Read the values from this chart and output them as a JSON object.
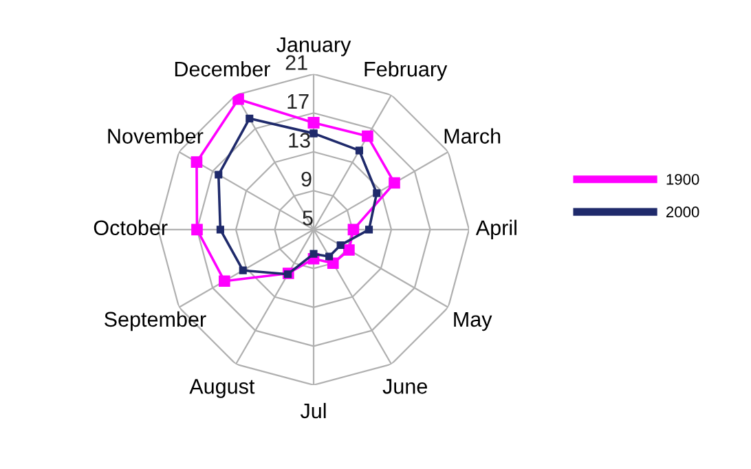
{
  "chart_data": {
    "type": "radar",
    "categories": [
      "January",
      "February",
      "March",
      "April",
      "May",
      "June",
      "Jul",
      "August",
      "September",
      "October",
      "November",
      "December"
    ],
    "series": [
      {
        "name": "1900",
        "color": "#ff00ff",
        "values": [
          16.0,
          16.1,
          14.6,
          9.1,
          9.2,
          9.0,
          8.0,
          10.2,
          15.6,
          17.0,
          18.9,
          20.5
        ]
      },
      {
        "name": "2000",
        "color": "#1f2a6b",
        "values": [
          14.9,
          14.4,
          12.5,
          10.7,
          8.2,
          8.2,
          7.5,
          10.3,
          13.4,
          14.6,
          16.3,
          18.2
        ]
      }
    ],
    "ylim": [
      5,
      21
    ],
    "yticks": [
      5,
      9,
      13,
      17,
      21
    ],
    "grid": true,
    "legend": "right",
    "marker": "square",
    "line_style": "solid"
  }
}
